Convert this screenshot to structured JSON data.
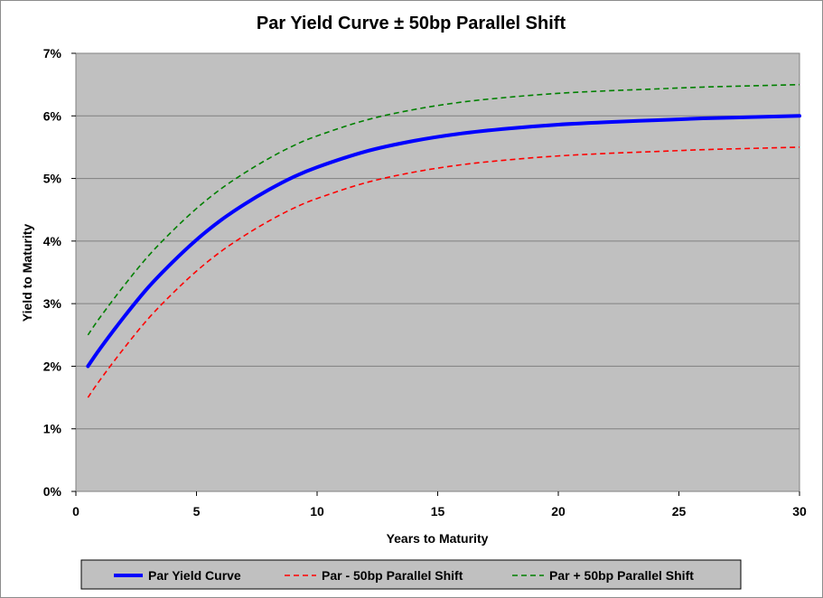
{
  "chart_data": {
    "type": "line",
    "title": "Par Yield Curve ± 50bp Parallel Shift",
    "xlabel": "Years to Maturity",
    "ylabel": "Yield to Maturity",
    "xlim": [
      0,
      30
    ],
    "ylim": [
      0,
      7
    ],
    "x_ticks": [
      "0",
      "5",
      "10",
      "15",
      "20",
      "25",
      "30"
    ],
    "y_ticks": [
      "0%",
      "1%",
      "2%",
      "3%",
      "4%",
      "5%",
      "6%",
      "7%"
    ],
    "grid": "horizontal",
    "plot_background": "#c0c0c0",
    "legend_position": "bottom",
    "x": [
      0.5,
      1,
      2,
      3,
      4,
      5,
      6,
      7,
      8,
      9,
      10,
      12,
      14,
      16,
      18,
      20,
      22,
      24,
      26,
      28,
      30
    ],
    "series": [
      {
        "name": "Par Yield Curve",
        "color": "#0000ff",
        "style": "solid",
        "values": [
          2.0,
          2.28,
          2.79,
          3.26,
          3.66,
          4.02,
          4.33,
          4.59,
          4.82,
          5.02,
          5.18,
          5.43,
          5.6,
          5.72,
          5.8,
          5.86,
          5.9,
          5.93,
          5.96,
          5.98,
          6.0
        ]
      },
      {
        "name": "Par - 50bp Parallel Shift",
        "color": "#ff0000",
        "style": "dashed",
        "values": [
          1.5,
          1.78,
          2.29,
          2.76,
          3.16,
          3.52,
          3.83,
          4.09,
          4.32,
          4.52,
          4.68,
          4.93,
          5.1,
          5.22,
          5.3,
          5.36,
          5.4,
          5.43,
          5.46,
          5.48,
          5.5
        ]
      },
      {
        "name": "Par + 50bp Parallel Shift",
        "color": "#008000",
        "style": "dashed",
        "values": [
          2.5,
          2.78,
          3.29,
          3.76,
          4.16,
          4.52,
          4.83,
          5.09,
          5.32,
          5.52,
          5.68,
          5.93,
          6.1,
          6.22,
          6.3,
          6.36,
          6.4,
          6.43,
          6.46,
          6.48,
          6.5
        ]
      }
    ]
  }
}
